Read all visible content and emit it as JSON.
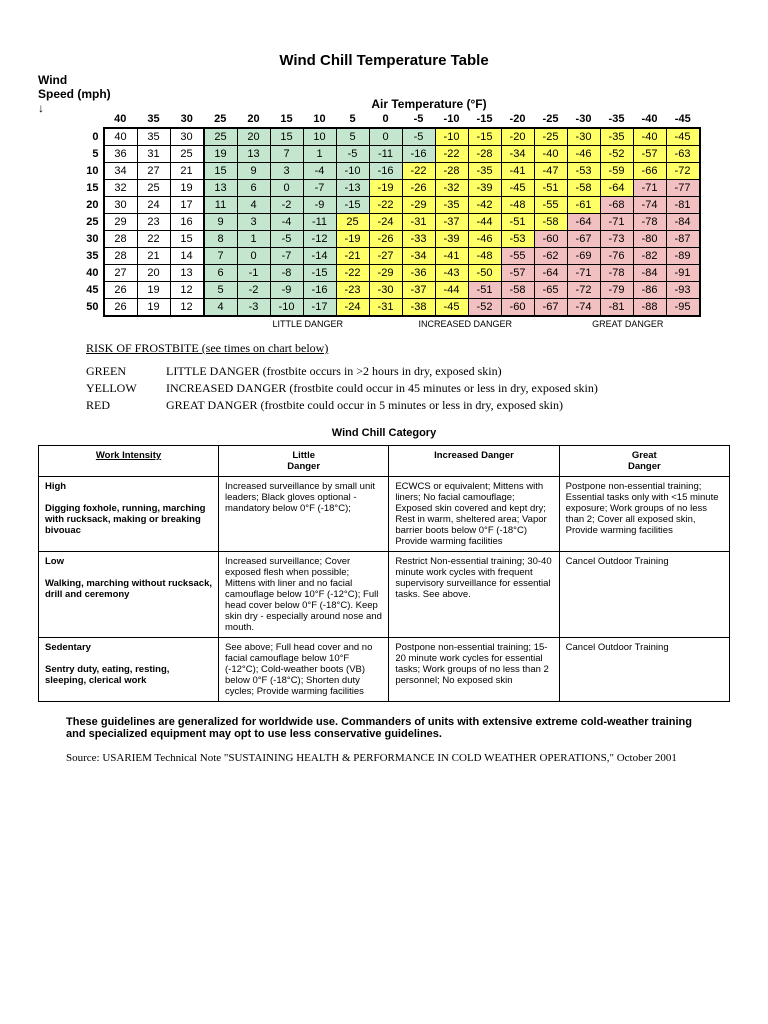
{
  "title": "Wind Chill Temperature Table",
  "speed_label": "Wind\nSpeed (mph)",
  "arrow": "↓",
  "airtemp_label": "Air Temperature (°F)",
  "temps": [
    40,
    35,
    30,
    25,
    20,
    15,
    10,
    5,
    0,
    -5,
    -10,
    -15,
    -20,
    -25,
    -30,
    -35,
    -40,
    -45
  ],
  "speeds": [
    0,
    5,
    10,
    15,
    20,
    25,
    30,
    35,
    40,
    45,
    50
  ],
  "danger_label_little": "LITTLE DANGER",
  "danger_label_increased": "INCREASED DANGER",
  "danger_label_great": "GREAT DANGER",
  "risk_heading": "RISK OF FROSTBITE (see times on chart below)",
  "legend": {
    "green": {
      "label": "GREEN",
      "text": "LITTLE DANGER (frostbite occurs in >2 hours in dry, exposed skin)"
    },
    "yellow": {
      "label": "YELLOW",
      "text": "INCREASED DANGER (frostbite could occur in 45 minutes or less in dry, exposed skin)"
    },
    "red": {
      "label": "RED",
      "text": "GREAT DANGER (frostbite could occur in 5 minutes or less in dry, exposed skin)"
    }
  },
  "cat_title": "Wind Chill Category",
  "cat_headers": {
    "wi": "Work Intensity",
    "little": "Little\nDanger",
    "increased": "Increased Danger",
    "great": "Great\nDanger"
  },
  "cat": [
    {
      "level": "High",
      "desc": "Digging foxhole, running, marching with rucksack, making or breaking bivouac",
      "little": "Increased surveillance by small unit leaders; Black gloves optional - mandatory below 0°F (-18°C);",
      "increased": "ECWCS or equivalent; Mittens with liners; No facial camouflage; Exposed skin covered and kept dry; Rest in warm, sheltered area; Vapor barrier boots below 0°F (-18°C) Provide warming facilities",
      "great": "Postpone non-essential training; Essential tasks only with <15 minute exposure; Work groups of no less than 2; Cover all exposed skin, Provide warming facilities"
    },
    {
      "level": "Low",
      "desc": "Walking, marching without rucksack, drill and ceremony",
      "little": "Increased surveillance; Cover exposed flesh when possible; Mittens with liner and no facial camouflage below 10°F (-12°C); Full head cover below 0°F (-18°C). Keep skin dry - especially around nose and mouth.",
      "increased": "Restrict Non-essential training; 30-40 minute work cycles with frequent supervisory surveillance for essential tasks. See above.",
      "great": "Cancel Outdoor Training"
    },
    {
      "level": "Sedentary",
      "desc": "Sentry duty, eating, resting, sleeping, clerical work",
      "little": "See above; Full head cover and no facial camouflage below 10°F (-12°C); Cold-weather boots (VB) below 0°F (-18°C); Shorten duty cycles; Provide warming facilities",
      "increased": "Postpone non-essential training; 15-20 minute work cycles for essential tasks; Work groups of no less than 2 personnel; No exposed skin",
      "great": "Cancel Outdoor Training"
    }
  ],
  "note": "These guidelines are generalized for worldwide use.  Commanders of units with extensive extreme cold-weather training and specialized equipment may opt to use less conservative guidelines.",
  "source": "Source: USARIEM Technical Note \"SUSTAINING HEALTH & PERFORMANCE IN COLD WEATHER OPERATIONS,\" October 2001",
  "rows": [
    {
      "v": [
        40,
        35,
        30,
        25,
        20,
        15,
        10,
        5,
        0,
        -5,
        -10,
        -15,
        -20,
        -25,
        -30,
        -35,
        -40,
        -45
      ],
      "c": [
        "",
        "",
        "",
        "g",
        "g",
        "g",
        "g",
        "g",
        "g",
        "g",
        "y",
        "y",
        "y",
        "y",
        "y",
        "y",
        "y",
        "y"
      ]
    },
    {
      "v": [
        36,
        31,
        25,
        19,
        13,
        7,
        1,
        -5,
        -11,
        -16,
        -22,
        -28,
        -34,
        -40,
        -46,
        -52,
        -57,
        -63
      ],
      "c": [
        "",
        "",
        "",
        "g",
        "g",
        "g",
        "g",
        "g",
        "g",
        "g",
        "y",
        "y",
        "y",
        "y",
        "y",
        "y",
        "y",
        "y"
      ]
    },
    {
      "v": [
        34,
        27,
        21,
        15,
        9,
        3,
        -4,
        -10,
        -16,
        -22,
        -28,
        -35,
        -41,
        -47,
        -53,
        -59,
        -66,
        -72
      ],
      "c": [
        "",
        "",
        "",
        "g",
        "g",
        "g",
        "g",
        "g",
        "g",
        "y",
        "y",
        "y",
        "y",
        "y",
        "y",
        "y",
        "y",
        "y"
      ]
    },
    {
      "v": [
        32,
        25,
        19,
        13,
        6,
        0,
        -7,
        -13,
        -19,
        -26,
        -32,
        -39,
        -45,
        -51,
        -58,
        -64,
        -71,
        -77
      ],
      "c": [
        "",
        "",
        "",
        "g",
        "g",
        "g",
        "g",
        "g",
        "y",
        "y",
        "y",
        "y",
        "y",
        "y",
        "y",
        "y",
        "r",
        "r"
      ]
    },
    {
      "v": [
        30,
        24,
        17,
        11,
        4,
        -2,
        -9,
        -15,
        -22,
        -29,
        -35,
        -42,
        -48,
        -55,
        -61,
        -68,
        -74,
        -81
      ],
      "c": [
        "",
        "",
        "",
        "g",
        "g",
        "g",
        "g",
        "g",
        "y",
        "y",
        "y",
        "y",
        "y",
        "y",
        "y",
        "r",
        "r",
        "r"
      ]
    },
    {
      "v": [
        29,
        23,
        16,
        9,
        3,
        -4,
        -11,
        25,
        -24,
        -31,
        -37,
        -44,
        -51,
        -58,
        -64,
        -71,
        -78,
        -84
      ],
      "c": [
        "",
        "",
        "",
        "g",
        "g",
        "g",
        "g",
        "y",
        "y",
        "y",
        "y",
        "y",
        "y",
        "y",
        "r",
        "r",
        "r",
        "r"
      ]
    },
    {
      "v": [
        28,
        22,
        15,
        8,
        1,
        -5,
        -12,
        -19,
        -26,
        -33,
        -39,
        -46,
        -53,
        -60,
        -67,
        -73,
        -80,
        -87
      ],
      "c": [
        "",
        "",
        "",
        "g",
        "g",
        "g",
        "g",
        "y",
        "y",
        "y",
        "y",
        "y",
        "y",
        "r",
        "r",
        "r",
        "r",
        "r"
      ]
    },
    {
      "v": [
        28,
        21,
        14,
        7,
        0,
        -7,
        -14,
        -21,
        -27,
        -34,
        -41,
        -48,
        -55,
        -62,
        -69,
        -76,
        -82,
        -89
      ],
      "c": [
        "",
        "",
        "",
        "g",
        "g",
        "g",
        "g",
        "y",
        "y",
        "y",
        "y",
        "y",
        "r",
        "r",
        "r",
        "r",
        "r",
        "r"
      ]
    },
    {
      "v": [
        27,
        20,
        13,
        6,
        -1,
        -8,
        -15,
        -22,
        -29,
        -36,
        -43,
        -50,
        -57,
        -64,
        -71,
        -78,
        -84,
        -91
      ],
      "c": [
        "",
        "",
        "",
        "g",
        "g",
        "g",
        "g",
        "y",
        "y",
        "y",
        "y",
        "y",
        "r",
        "r",
        "r",
        "r",
        "r",
        "r"
      ]
    },
    {
      "v": [
        26,
        19,
        12,
        5,
        -2,
        -9,
        -16,
        -23,
        -30,
        -37,
        -44,
        -51,
        -58,
        -65,
        -72,
        -79,
        -86,
        -93
      ],
      "c": [
        "",
        "",
        "",
        "g",
        "g",
        "g",
        "g",
        "y",
        "y",
        "y",
        "y",
        "r",
        "r",
        "r",
        "r",
        "r",
        "r",
        "r"
      ]
    },
    {
      "v": [
        26,
        19,
        12,
        4,
        -3,
        -10,
        -17,
        -24,
        -31,
        -38,
        -45,
        -52,
        -60,
        -67,
        -74,
        -81,
        -88,
        -95
      ],
      "c": [
        "",
        "",
        "",
        "g",
        "g",
        "g",
        "g",
        "y",
        "y",
        "y",
        "y",
        "r",
        "r",
        "r",
        "r",
        "r",
        "r",
        "r"
      ]
    }
  ],
  "colors": {
    "g": "#c4e6cf",
    "y": "#ffff66",
    "r": "#f2c0c0",
    "border": "#000000",
    "background": "#ffffff"
  }
}
